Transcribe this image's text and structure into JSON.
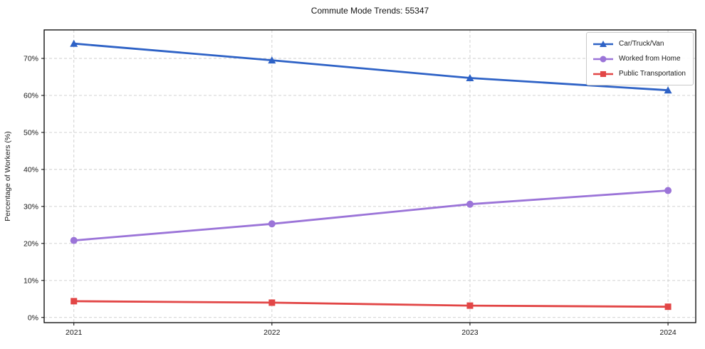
{
  "title": "Commute Mode Trends: 55347",
  "colors": {
    "background": "#ffffff",
    "grid": "#cccccc",
    "spine": "#000000",
    "text": "#1a1a1a",
    "car_truck_van": "#2e62c6",
    "worked_from_home": "#9b74d8",
    "public_transportation": "#e24646"
  },
  "chart_data": {
    "type": "line",
    "title": "Commute Mode Trends: 55347",
    "xlabel": "",
    "ylabel": "Percentage of Workers (%)",
    "categories": [
      2021,
      2022,
      2023,
      2024
    ],
    "series": [
      {
        "name": "Car/Truck/Van",
        "values": [
          74.0,
          69.5,
          64.7,
          61.4
        ],
        "color": "#2e62c6",
        "marker": "triangle"
      },
      {
        "name": "Worked from Home",
        "values": [
          20.8,
          25.3,
          30.6,
          34.3
        ],
        "color": "#9b74d8",
        "marker": "circle"
      },
      {
        "name": "Public Transportation",
        "values": [
          4.4,
          4.0,
          3.2,
          2.9
        ],
        "color": "#e24646",
        "marker": "square"
      }
    ],
    "yticks": [
      0,
      10,
      20,
      30,
      40,
      50,
      60,
      70
    ],
    "ytick_suffix": "%",
    "ylim": [
      -1.4,
      77.7
    ],
    "xlim": [
      2020.85,
      2024.14
    ],
    "grid": true,
    "grid_style": "dashed",
    "legend_position": "upper right"
  }
}
